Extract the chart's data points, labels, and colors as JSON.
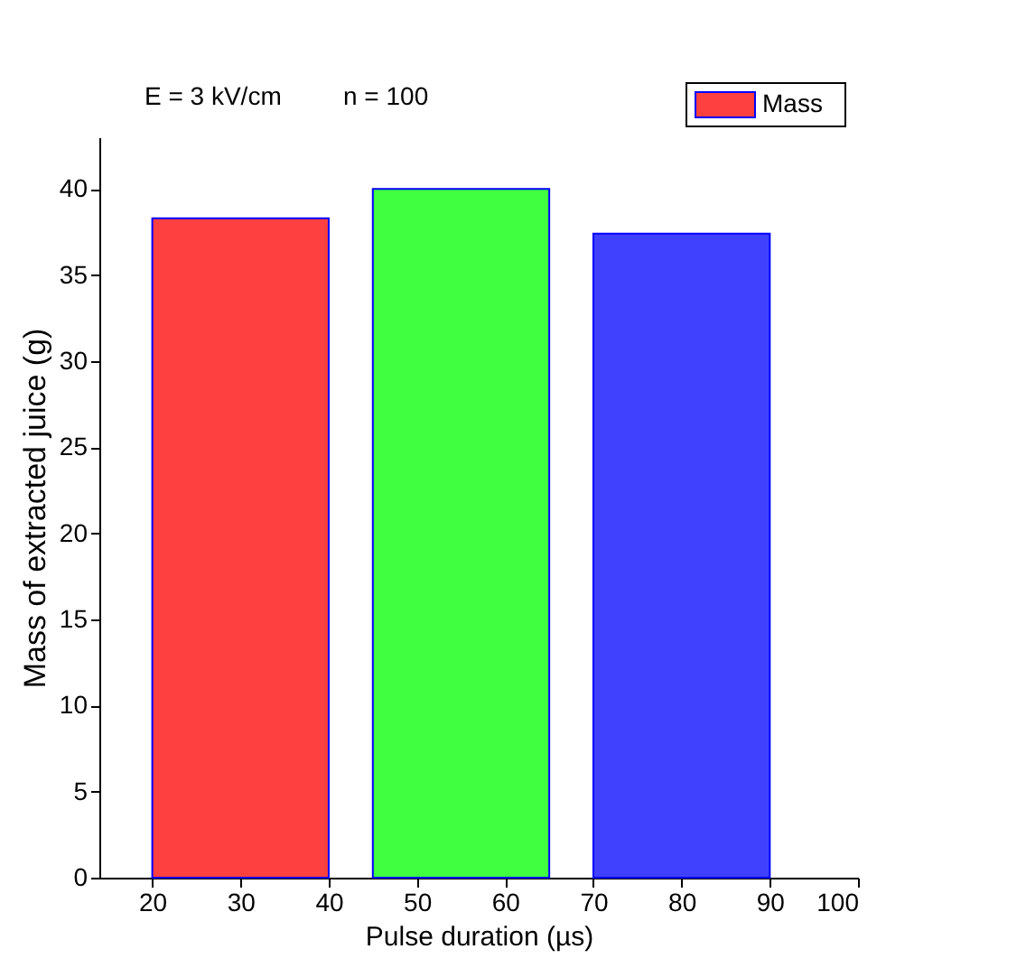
{
  "chart_data": {
    "type": "bar",
    "xlabel": "Pulse duration (µs)",
    "ylabel": "Mass of extracted juice (g)",
    "x": [
      30,
      55,
      80
    ],
    "series": [
      {
        "name": "Mass",
        "color": "#ff0000",
        "colors": [
          "#ff0000",
          "#00ff00",
          "#0000ff"
        ],
        "values": [
          38.3,
          40.0,
          37.4
        ]
      }
    ],
    "xlim": [
      14,
      100
    ],
    "xticks": [
      20,
      30,
      40,
      50,
      60,
      70,
      80,
      90,
      100
    ],
    "ylim": [
      0,
      43
    ],
    "yticks": [
      0,
      5,
      10,
      15,
      20,
      25,
      30,
      35,
      40
    ],
    "annotations": [
      "E = 3 kV/cm",
      "n = 100"
    ],
    "legend": "top right",
    "grid": false
  }
}
